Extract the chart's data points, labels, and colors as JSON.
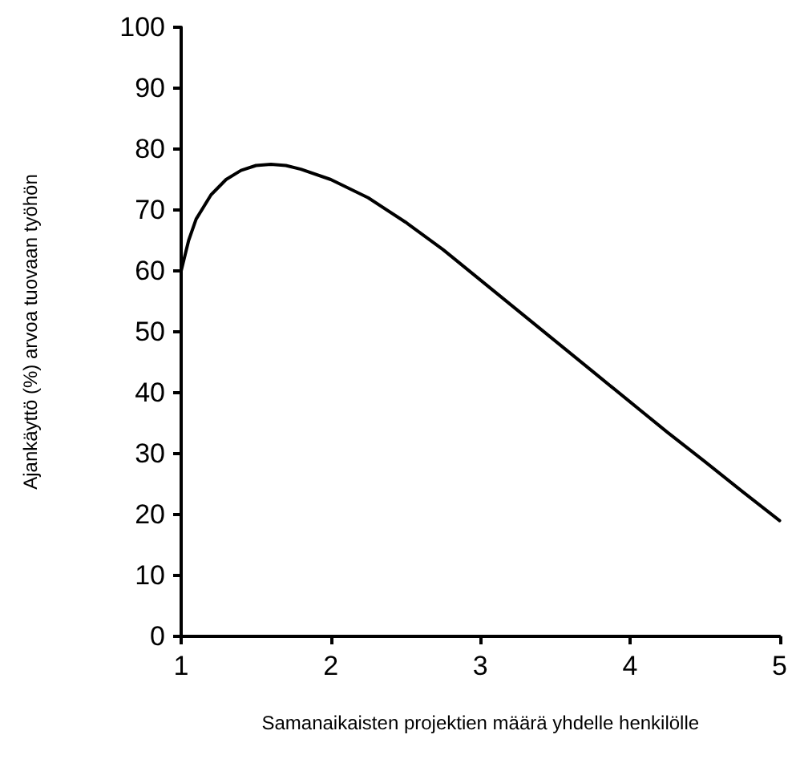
{
  "chart_data": {
    "type": "line",
    "xlabel": "Samanaikaisten projektien määrä yhdelle henkilölle",
    "ylabel": "Ajankäyttö (%) arvoa tuovaan työhön",
    "x": [
      1,
      1.05,
      1.1,
      1.2,
      1.3,
      1.4,
      1.5,
      1.6,
      1.7,
      1.8,
      2,
      2.25,
      2.5,
      2.75,
      3,
      3.25,
      3.5,
      3.75,
      4,
      4.25,
      4.5,
      4.75,
      5
    ],
    "series": [
      {
        "color": "#000000",
        "values": [
          60,
          65,
          68.5,
          72.5,
          75,
          76.5,
          77.3,
          77.5,
          77.3,
          76.7,
          75,
          72,
          68,
          63.5,
          58.5,
          53.5,
          48.5,
          43.5,
          38.5,
          33.5,
          28.7,
          23.8,
          19
        ]
      }
    ],
    "xlim": [
      1,
      5
    ],
    "xticks": [
      1,
      2,
      3,
      4,
      5
    ],
    "ylim": [
      0,
      100
    ],
    "yticks": [
      0,
      10,
      20,
      30,
      40,
      50,
      60,
      70,
      80,
      90,
      100
    ],
    "grid": false,
    "marker": "none",
    "line_style": "solid"
  }
}
